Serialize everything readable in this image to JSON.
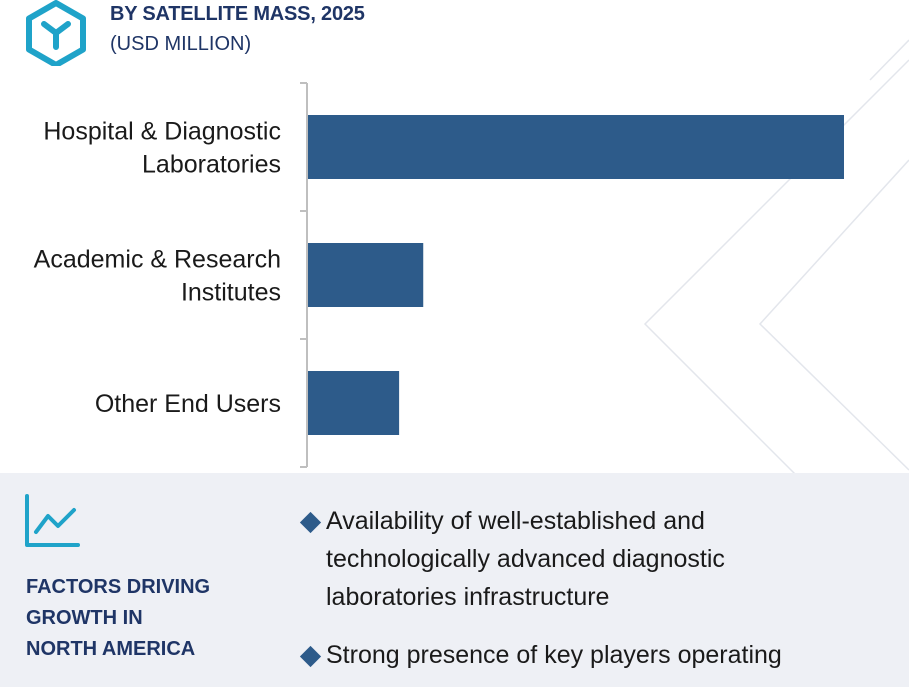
{
  "header": {
    "title": "BY SATELLITE MASS, 2025",
    "subtitle": "(USD MILLION)"
  },
  "colors": {
    "bar": "#2d5b8a",
    "heading": "#1f3566",
    "logo": "#1fa3c9",
    "panel": "#eef0f5"
  },
  "chart_data": {
    "type": "bar",
    "orientation": "horizontal",
    "title": "BY SATELLITE MASS, 2025",
    "subtitle": "(USD MILLION)",
    "categories": [
      [
        "Hospital & Diagnostic",
        "Laboratories"
      ],
      [
        "Academic & Research",
        "Institutes"
      ],
      [
        "Other End Users"
      ]
    ],
    "values": [
      100,
      21.5,
      17
    ],
    "xlim": [
      0,
      100
    ],
    "xlabel": "",
    "ylabel": "",
    "grid": false
  },
  "factors": {
    "heading_lines": [
      "FACTORS DRIVING",
      "GROWTH IN",
      "NORTH AMERICA"
    ],
    "bullets": [
      "Availability of well-established and technologically advanced diagnostic laboratories infrastructure",
      "Strong presence of key players operating"
    ]
  }
}
